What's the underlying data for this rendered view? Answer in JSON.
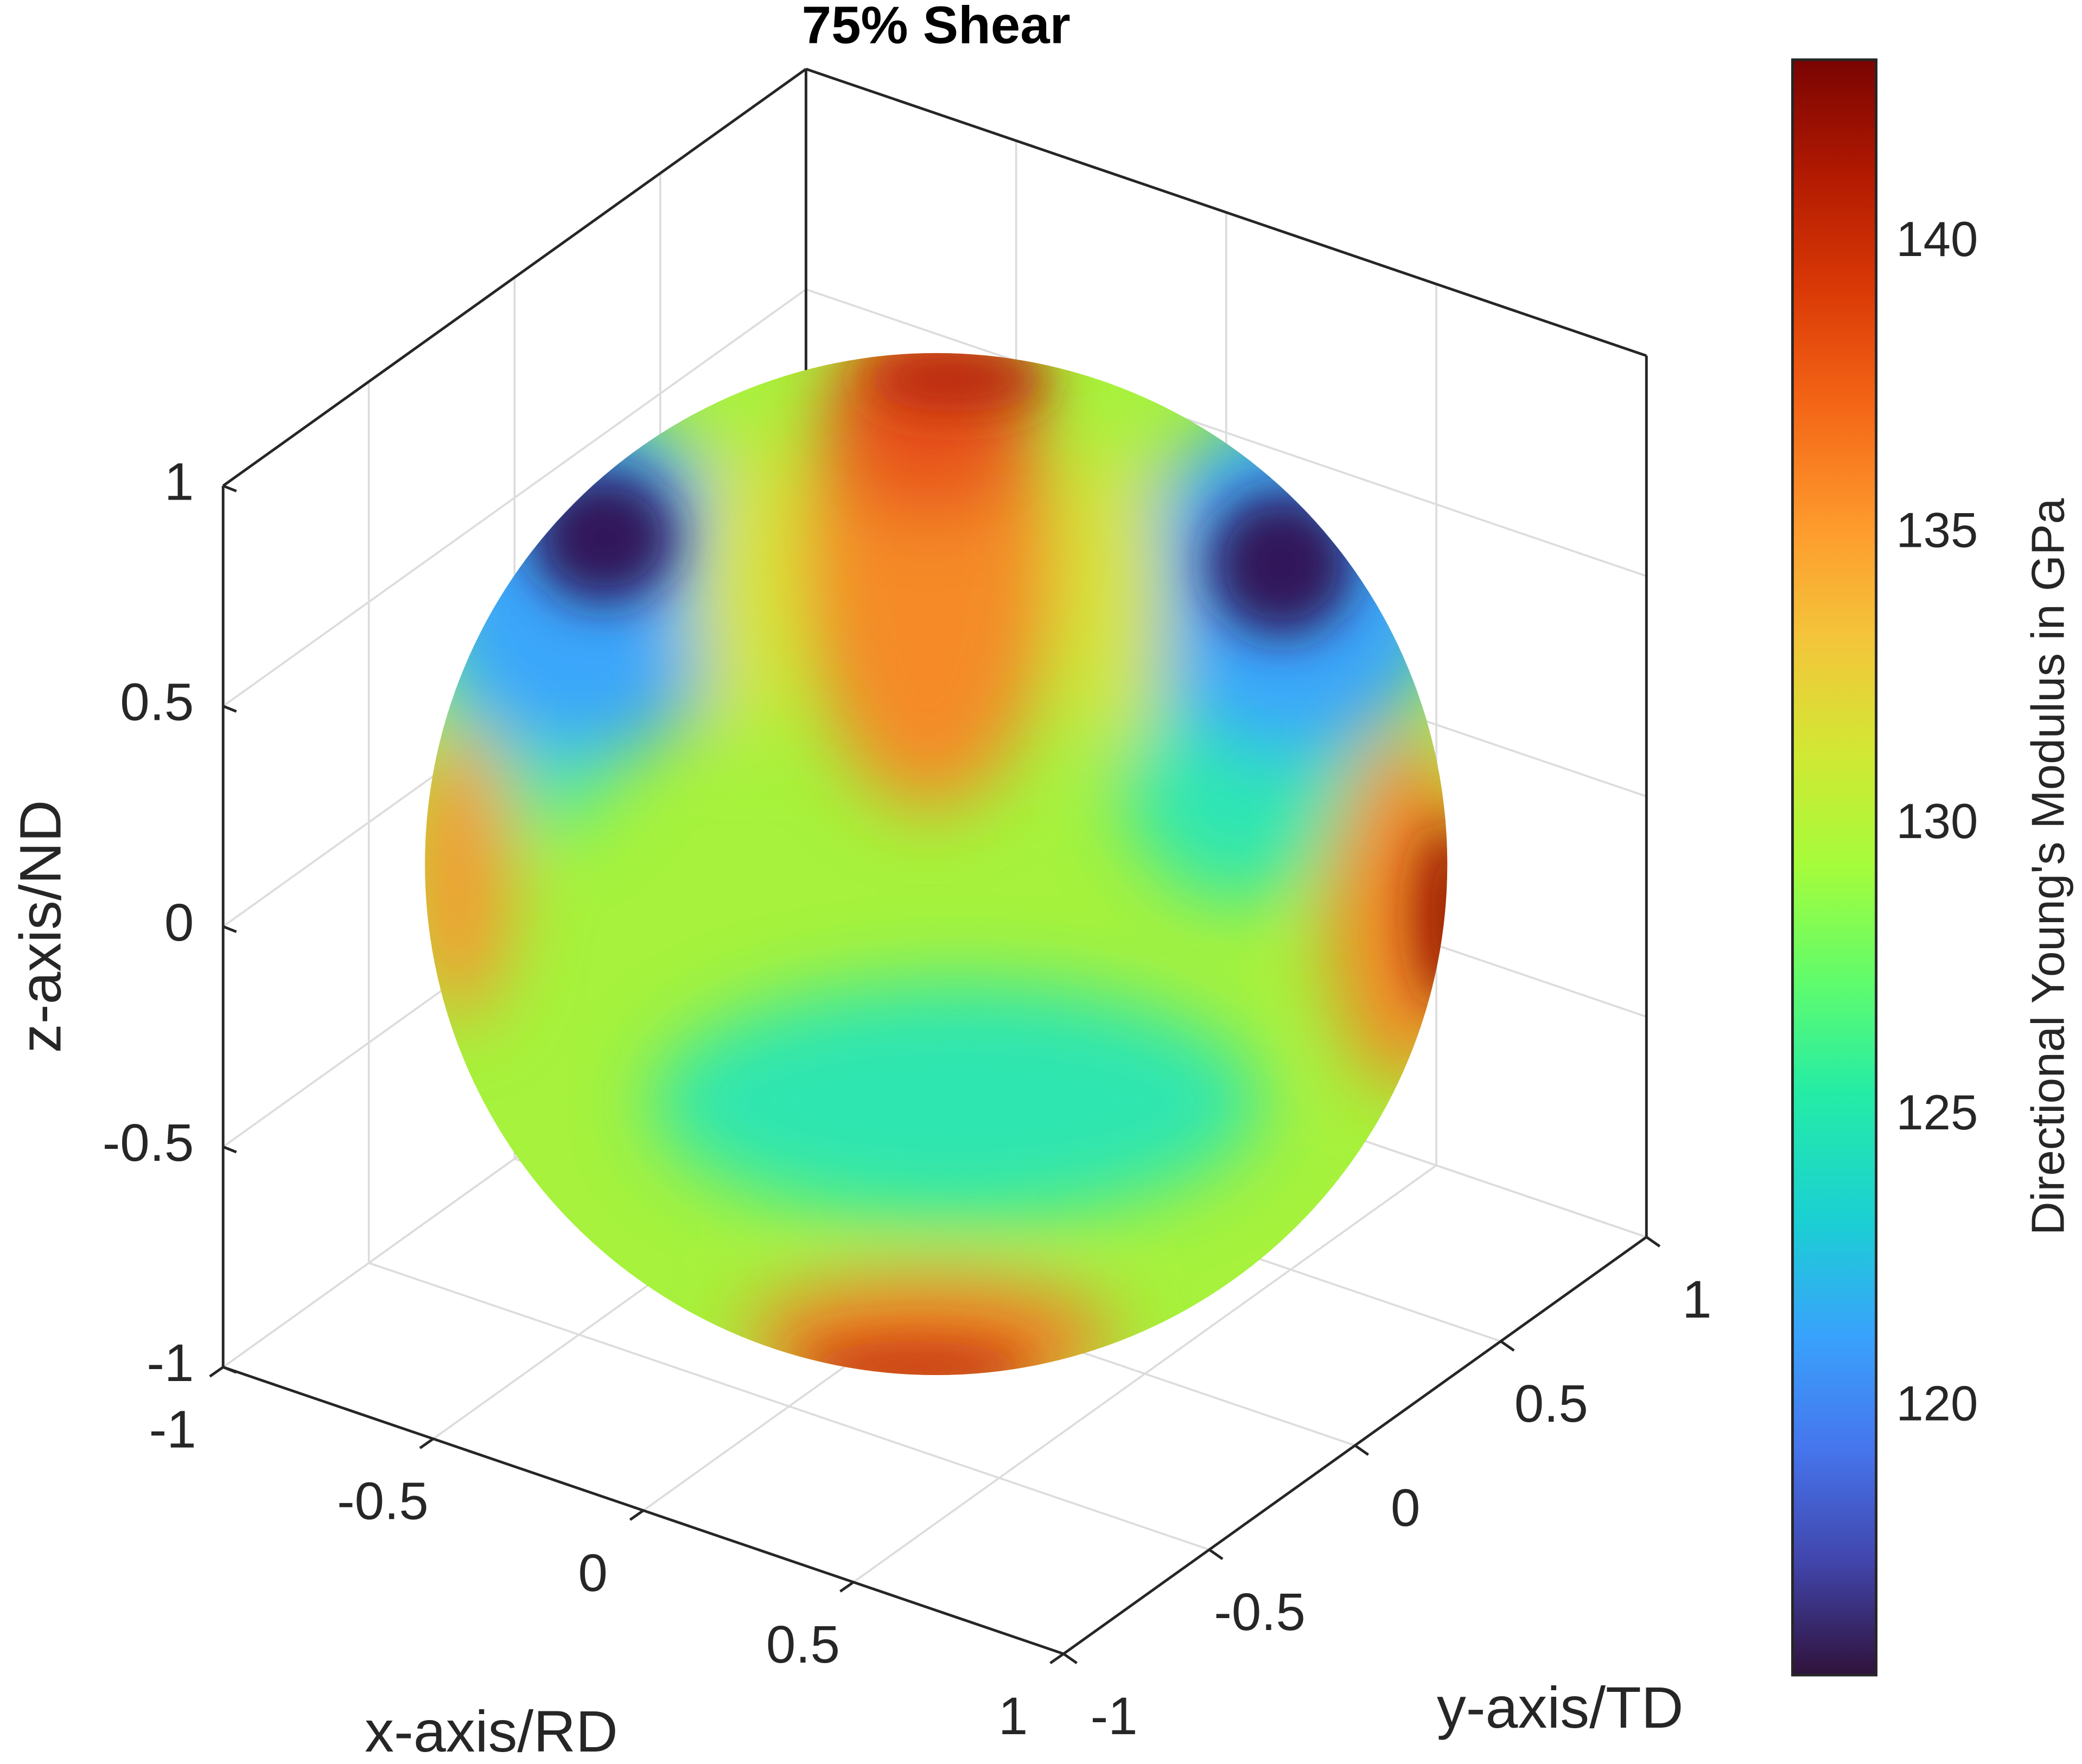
{
  "chart_data": {
    "type": "surface3d",
    "title": "75% Shear",
    "x_label": "x-axis/RD",
    "y_label": "y-axis/TD",
    "z_label": "z-axis/ND",
    "xlim": [
      -1,
      1
    ],
    "ylim": [
      -1,
      1
    ],
    "zlim": [
      -1,
      1
    ],
    "xticks": [
      -1,
      -0.5,
      0,
      0.5,
      1
    ],
    "yticks": [
      -1,
      -0.5,
      0,
      0.5,
      1
    ],
    "zticks": [
      -1,
      -0.5,
      0,
      0.5,
      1
    ],
    "grid": true,
    "colorbar": {
      "label": "Directional Young's Modulus in GPa",
      "clim": [
        115.4,
        143.15
      ],
      "ticks": [
        120,
        125,
        130,
        135,
        140
      ]
    }
  }
}
